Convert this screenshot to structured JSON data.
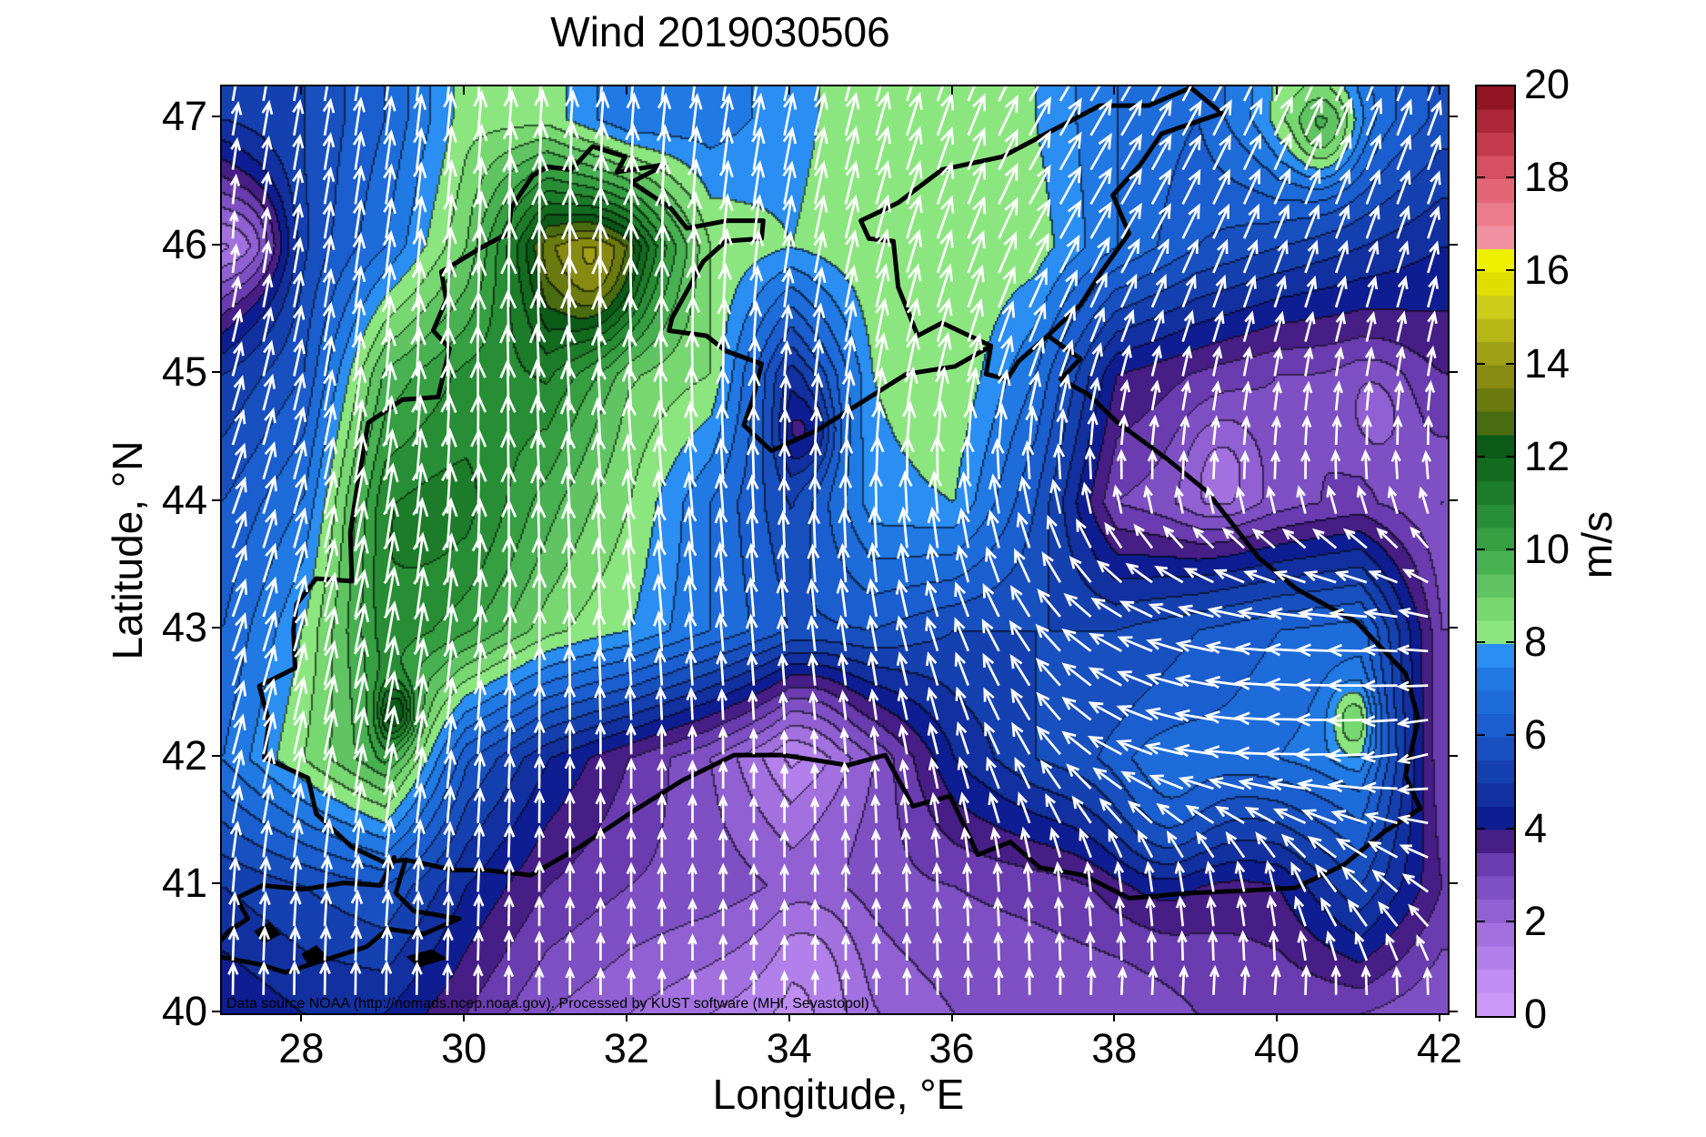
{
  "title": "Wind 2019030506",
  "attribution": "Data source NOAA (http://nomads.ncep.noaa.gov). Processed by KUST software (MHI, Sevastopol)",
  "axes": {
    "xlabel": "Longitude, °E",
    "ylabel": "Latitude, °N",
    "x_ticks": [
      28,
      30,
      32,
      34,
      36,
      38,
      40,
      42
    ],
    "y_ticks": [
      40,
      41,
      42,
      43,
      44,
      45,
      46,
      47
    ],
    "x_range": [
      27.0,
      42.08
    ],
    "y_range": [
      40.0,
      47.25
    ],
    "grid": false
  },
  "colorbar": {
    "label": "m/s",
    "min": 0,
    "max": 20,
    "ticks": [
      0,
      2,
      4,
      6,
      8,
      10,
      12,
      14,
      16,
      18,
      20
    ],
    "band_step": 0.5,
    "band_colors": [
      "#c998f8",
      "#bf8df3",
      "#b180ea",
      "#a271df",
      "#9161d3",
      "#7f50c4",
      "#6a3cb0",
      "#471e86",
      "#0e1e92",
      "#12309f",
      "#1541b0",
      "#1850c0",
      "#1b5ecf",
      "#1e6cda",
      "#2179e4",
      "#2b8ef2",
      "#8ce680",
      "#77d771",
      "#60c463",
      "#48b151",
      "#359f41",
      "#288e35",
      "#1d7c29",
      "#136b20",
      "#0b5a18",
      "#4a6c10",
      "#6b7b10",
      "#888b12",
      "#a0a015",
      "#b7b717",
      "#cccc19",
      "#dede00",
      "#efef00",
      "#f191a1",
      "#ec7c8c",
      "#e36677",
      "#d55062",
      "#c23a4c",
      "#ab2739",
      "#921525"
    ]
  },
  "chart_data": {
    "type": "heatmap",
    "subtype": "wind-speed-contour-with-quiver-overlay",
    "title": "Wind 2019030506",
    "xlabel": "Longitude, °E",
    "ylabel": "Latitude, °N",
    "value_label": "m/s",
    "value_range": [
      0,
      20
    ],
    "legend_position": "right-colorbar",
    "arrow_color": "#ffffff",
    "coastline_color": "#000000",
    "wind_grid": {
      "lons": [
        27,
        28,
        29,
        30,
        31,
        32,
        33,
        34,
        35,
        36,
        37,
        38,
        39,
        40,
        41,
        42
      ],
      "lats": [
        47,
        46,
        45,
        44,
        43,
        42,
        41,
        40
      ],
      "speed_ms": [
        [
          5.0,
          5.5,
          6.5,
          8.3,
          8.3,
          7.0,
          7.2,
          7.8,
          8.4,
          8.4,
          8.0,
          7.0,
          6.5,
          8.0,
          7.0,
          5.8
        ],
        [
          2.0,
          5.5,
          7.0,
          9.0,
          13.0,
          12.0,
          8.5,
          8.0,
          8.5,
          8.5,
          8.3,
          7.0,
          6.0,
          5.5,
          5.0,
          4.5
        ],
        [
          5.0,
          6.0,
          9.5,
          10.5,
          11.0,
          9.0,
          8.5,
          4.8,
          8.0,
          8.5,
          7.0,
          4.0,
          3.5,
          3.0,
          3.0,
          3.5
        ],
        [
          6.0,
          7.0,
          10.5,
          10.5,
          9.5,
          8.5,
          7.0,
          5.5,
          7.8,
          8.0,
          6.0,
          3.0,
          2.5,
          2.8,
          3.2,
          2.5
        ],
        [
          6.5,
          8.0,
          10.5,
          9.5,
          8.5,
          8.0,
          7.0,
          6.0,
          6.0,
          5.5,
          5.5,
          5.5,
          6.0,
          6.5,
          6.8,
          3.0
        ],
        [
          7.0,
          8.5,
          10.0,
          6.0,
          4.5,
          3.5,
          2.5,
          1.0,
          2.5,
          4.5,
          5.5,
          6.0,
          6.5,
          7.0,
          7.5,
          3.0
        ],
        [
          5.0,
          5.5,
          6.0,
          4.5,
          3.5,
          3.0,
          2.8,
          2.5,
          2.8,
          3.0,
          3.2,
          3.5,
          3.5,
          4.0,
          5.5,
          3.5
        ],
        [
          4.0,
          4.5,
          4.5,
          3.5,
          2.5,
          2.0,
          1.5,
          1.0,
          2.0,
          2.5,
          2.5,
          2.5,
          3.0,
          3.0,
          3.0,
          2.5
        ]
      ],
      "dir_deg_from_north": [
        [
          10,
          10,
          8,
          5,
          5,
          5,
          8,
          12,
          15,
          20,
          30,
          30,
          28,
          25,
          22,
          20
        ],
        [
          0,
          10,
          8,
          5,
          0,
          0,
          5,
          10,
          15,
          20,
          28,
          30,
          25,
          22,
          20,
          18
        ],
        [
          15,
          12,
          5,
          0,
          -3,
          -3,
          0,
          5,
          10,
          15,
          20,
          15,
          12,
          10,
          10,
          10
        ],
        [
          20,
          15,
          8,
          2,
          -3,
          -5,
          -5,
          0,
          0,
          -5,
          -10,
          -5,
          0,
          0,
          -5,
          -10
        ],
        [
          20,
          15,
          10,
          5,
          0,
          -5,
          -5,
          -5,
          -10,
          -20,
          -35,
          -60,
          -75,
          -85,
          -88,
          -80
        ],
        [
          15,
          12,
          10,
          5,
          0,
          0,
          0,
          0,
          -5,
          -15,
          -30,
          -60,
          -80,
          -88,
          -92,
          -110
        ],
        [
          5,
          5,
          5,
          3,
          0,
          0,
          0,
          0,
          0,
          -3,
          -5,
          -8,
          -10,
          -15,
          -45,
          -60
        ],
        [
          0,
          0,
          0,
          0,
          0,
          0,
          0,
          0,
          0,
          0,
          0,
          5,
          5,
          8,
          10,
          10
        ]
      ]
    },
    "local_features": [
      {
        "name": "olive-high-wind-patch-odessa",
        "lon": 31.6,
        "lat": 45.75,
        "r": 0.55,
        "amp": 2.0
      },
      {
        "name": "calm-purple-spot-nw-corner",
        "lon": 27.35,
        "lat": 46.05,
        "r": 0.45,
        "amp": -1.2
      },
      {
        "name": "green-spot-top-right",
        "lon": 40.55,
        "lat": 46.9,
        "r": 0.45,
        "amp": 2.2
      },
      {
        "name": "green-spot-east-tongue",
        "lon": 40.9,
        "lat": 42.3,
        "r": 0.3,
        "amp": 1.6
      },
      {
        "name": "navy-core-south-of-crimea",
        "lon": 34.2,
        "lat": 44.55,
        "r": 0.35,
        "amp": -1.6
      },
      {
        "name": "olive-dot-sw-green-wedge",
        "lon": 29.15,
        "lat": 42.35,
        "r": 0.25,
        "amp": 2.5
      },
      {
        "name": "light-purple-spot-east",
        "lon": 39.3,
        "lat": 44.3,
        "r": 0.5,
        "amp": -1.0
      },
      {
        "name": "light-purple-spot-caucasus",
        "lon": 41.2,
        "lat": 44.7,
        "r": 0.45,
        "amp": -0.8
      },
      {
        "name": "calm-core-central-turkey",
        "lon": 34.3,
        "lat": 40.5,
        "r": 0.6,
        "amp": -0.6
      },
      {
        "name": "calm-core-south-central-sea",
        "lon": 34.3,
        "lat": 42.4,
        "r": 0.5,
        "amp": -0.5
      },
      {
        "name": "navy-band-ne-turkey",
        "lon": 38.6,
        "lat": 41.45,
        "r": 0.7,
        "amp": 1.2
      },
      {
        "name": "dark-green-core-west",
        "lon": 29.8,
        "lat": 43.6,
        "r": 1.2,
        "amp": 0.8
      }
    ],
    "map": {
      "coastlines": [
        [
          [
            29.0,
            41.18
          ],
          [
            28.6,
            41.3
          ],
          [
            28.16,
            41.56
          ],
          [
            28.06,
            41.84
          ],
          [
            27.52,
            42.0
          ],
          [
            27.58,
            42.28
          ],
          [
            27.46,
            42.56
          ],
          [
            27.9,
            42.7
          ],
          [
            27.88,
            43.0
          ],
          [
            27.92,
            43.2
          ],
          [
            28.16,
            43.4
          ],
          [
            28.6,
            43.38
          ],
          [
            28.58,
            43.76
          ],
          [
            28.66,
            44.1
          ],
          [
            28.8,
            44.62
          ],
          [
            29.22,
            44.8
          ],
          [
            29.66,
            44.82
          ],
          [
            29.8,
            45.2
          ],
          [
            29.6,
            45.34
          ],
          [
            29.76,
            45.58
          ],
          [
            29.7,
            45.8
          ],
          [
            30.22,
            46.0
          ],
          [
            30.52,
            46.1
          ],
          [
            30.56,
            46.3
          ],
          [
            30.82,
            46.55
          ],
          [
            31.0,
            46.62
          ],
          [
            31.3,
            46.6
          ],
          [
            31.56,
            46.78
          ],
          [
            31.96,
            46.7
          ],
          [
            31.86,
            46.58
          ],
          [
            32.46,
            46.64
          ],
          [
            32.04,
            46.5
          ],
          [
            32.52,
            46.3
          ],
          [
            32.72,
            46.14
          ],
          [
            33.22,
            46.2
          ],
          [
            33.66,
            46.2
          ],
          [
            33.64,
            46.06
          ],
          [
            33.2,
            46.04
          ],
          [
            32.92,
            45.88
          ],
          [
            32.54,
            45.44
          ],
          [
            32.5,
            45.34
          ],
          [
            32.96,
            45.3
          ],
          [
            33.2,
            45.18
          ],
          [
            33.64,
            45.08
          ],
          [
            33.54,
            44.82
          ],
          [
            33.42,
            44.6
          ],
          [
            33.76,
            44.4
          ],
          [
            34.32,
            44.56
          ],
          [
            34.92,
            44.8
          ],
          [
            35.42,
            45.0
          ],
          [
            36.02,
            45.06
          ],
          [
            36.46,
            45.22
          ],
          [
            36.4,
            45.0
          ],
          [
            36.66,
            44.96
          ],
          [
            36.8,
            45.1
          ],
          [
            37.16,
            45.3
          ],
          [
            37.56,
            45.12
          ],
          [
            37.32,
            44.96
          ],
          [
            37.66,
            44.84
          ],
          [
            38.02,
            44.62
          ],
          [
            38.62,
            44.34
          ],
          [
            39.12,
            44.08
          ],
          [
            39.76,
            43.56
          ],
          [
            40.22,
            43.32
          ],
          [
            40.96,
            43.06
          ],
          [
            41.56,
            42.66
          ],
          [
            41.72,
            42.3
          ],
          [
            41.56,
            41.86
          ],
          [
            41.74,
            41.6
          ],
          [
            41.3,
            41.42
          ],
          [
            40.8,
            41.16
          ],
          [
            40.2,
            40.98
          ],
          [
            39.6,
            40.96
          ],
          [
            38.9,
            40.94
          ],
          [
            38.16,
            40.9
          ],
          [
            37.6,
            41.08
          ],
          [
            37.06,
            41.14
          ],
          [
            36.7,
            41.34
          ],
          [
            36.3,
            41.24
          ],
          [
            35.96,
            41.7
          ],
          [
            35.5,
            41.62
          ],
          [
            35.16,
            42.02
          ],
          [
            34.7,
            41.94
          ],
          [
            33.9,
            42.02
          ],
          [
            33.3,
            42.02
          ],
          [
            32.66,
            41.82
          ],
          [
            32.06,
            41.58
          ],
          [
            31.4,
            41.3
          ],
          [
            30.8,
            41.08
          ],
          [
            30.26,
            41.12
          ],
          [
            29.86,
            41.12
          ],
          [
            29.26,
            41.2
          ],
          [
            29.0,
            41.18
          ]
        ],
        [
          [
            36.46,
            45.22
          ],
          [
            35.86,
            45.4
          ],
          [
            35.56,
            45.3
          ],
          [
            35.32,
            45.68
          ],
          [
            35.26,
            46.04
          ],
          [
            34.96,
            46.06
          ],
          [
            34.86,
            46.2
          ],
          [
            35.32,
            46.34
          ],
          [
            35.86,
            46.6
          ],
          [
            36.6,
            46.7
          ],
          [
            37.26,
            46.92
          ],
          [
            37.8,
            47.1
          ],
          [
            38.4,
            47.1
          ],
          [
            38.92,
            47.24
          ],
          [
            39.3,
            47.04
          ],
          [
            38.56,
            46.88
          ],
          [
            38.3,
            46.64
          ],
          [
            37.96,
            46.4
          ],
          [
            38.16,
            46.1
          ],
          [
            37.82,
            45.8
          ],
          [
            37.56,
            45.54
          ],
          [
            37.16,
            45.3
          ]
        ],
        [
          [
            29.12,
            41.22
          ],
          [
            28.95,
            41.0
          ],
          [
            28.5,
            41.02
          ],
          [
            28.0,
            40.97
          ],
          [
            27.5,
            41.0
          ],
          [
            27.18,
            40.9
          ],
          [
            27.32,
            40.74
          ],
          [
            27.08,
            40.64
          ],
          [
            27.0,
            40.58
          ]
        ],
        [
          [
            29.26,
            41.2
          ],
          [
            29.14,
            40.94
          ],
          [
            29.36,
            40.8
          ],
          [
            29.92,
            40.74
          ],
          [
            29.48,
            40.62
          ],
          [
            29.04,
            40.66
          ],
          [
            28.78,
            40.52
          ],
          [
            28.18,
            40.4
          ],
          [
            27.78,
            40.32
          ],
          [
            27.48,
            40.38
          ],
          [
            27.0,
            40.44
          ]
        ]
      ],
      "islands": [
        [
          [
            27.42,
            40.64
          ],
          [
            27.58,
            40.7
          ],
          [
            27.7,
            40.62
          ],
          [
            27.52,
            40.56
          ]
        ],
        [
          [
            28.0,
            40.46
          ],
          [
            28.16,
            40.52
          ],
          [
            28.28,
            40.44
          ],
          [
            28.08,
            40.38
          ]
        ],
        [
          [
            29.3,
            40.44
          ],
          [
            29.58,
            40.49
          ],
          [
            29.74,
            40.43
          ],
          [
            29.42,
            40.37
          ]
        ]
      ]
    }
  }
}
